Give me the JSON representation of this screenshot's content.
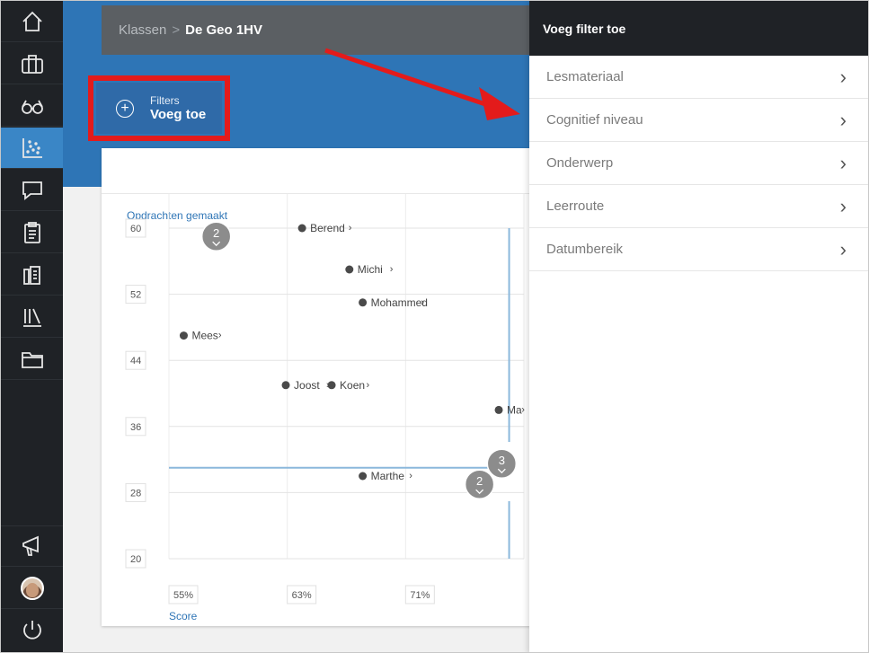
{
  "breadcrumb": {
    "parent": "Klassen",
    "separator": ">",
    "current": "De Geo 1HV"
  },
  "filters_button": {
    "small_label": "Filters",
    "label": "Voeg toe"
  },
  "panel": {
    "title": "Voeg filter toe",
    "items": [
      {
        "label": "Lesmateriaal"
      },
      {
        "label": "Cognitief niveau"
      },
      {
        "label": "Onderwerp"
      },
      {
        "label": "Leerroute"
      },
      {
        "label": "Datumbereik"
      }
    ]
  },
  "sidebar": {
    "items": [
      {
        "icon": "home-icon"
      },
      {
        "icon": "briefcase-icon"
      },
      {
        "icon": "glasses-icon"
      },
      {
        "icon": "scatter-chart-icon",
        "active": true
      },
      {
        "icon": "chat-bubble-icon"
      },
      {
        "icon": "clipboard-icon"
      },
      {
        "icon": "books-icon"
      },
      {
        "icon": "library-icon"
      },
      {
        "icon": "folder-icon"
      },
      {
        "icon": "megaphone-icon"
      },
      {
        "icon": "avatar"
      },
      {
        "icon": "power-icon"
      }
    ]
  },
  "chart_data": {
    "type": "scatter",
    "ylabel": "Opdrachten gemaakt",
    "xlabel": "Score",
    "y_ticks": [
      "60",
      "52",
      "44",
      "36",
      "28",
      "20"
    ],
    "x_ticks": [
      "55%",
      "63%",
      "71%"
    ],
    "xlim": [
      55,
      79
    ],
    "ylim": [
      20,
      60
    ],
    "points": [
      {
        "name": "Berend",
        "x": 64,
        "y": 60
      },
      {
        "name": "Michi",
        "x": 67.2,
        "y": 55
      },
      {
        "name": "Mohammed",
        "x": 68.1,
        "y": 51
      },
      {
        "name": "Mees",
        "x": 56,
        "y": 47
      },
      {
        "name": "Joost",
        "x": 62.9,
        "y": 41
      },
      {
        "name": "Koen",
        "x": 66,
        "y": 41
      },
      {
        "name": "Ma",
        "x": 77.3,
        "y": 38
      },
      {
        "name": "Marthe",
        "x": 68.1,
        "y": 30
      }
    ],
    "clusters": [
      {
        "count": "2",
        "x": 58.2,
        "y": 59
      },
      {
        "count": "3",
        "x": 77.5,
        "y": 31.5
      },
      {
        "count": "2",
        "x": 76,
        "y": 29
      }
    ],
    "ref_lines": {
      "x": 78,
      "y": 31
    }
  }
}
